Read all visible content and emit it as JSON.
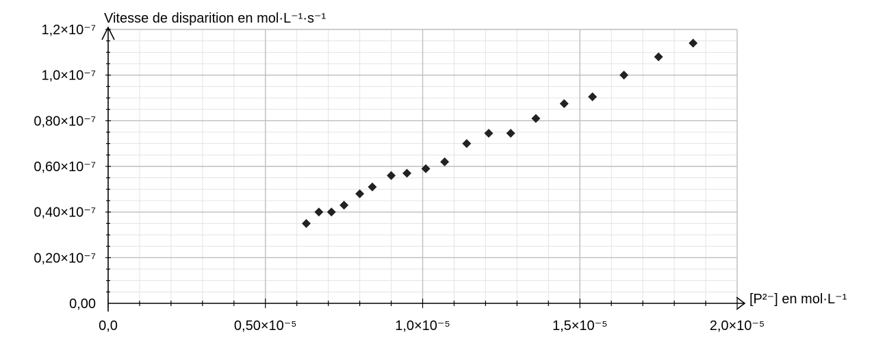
{
  "chart_data": {
    "type": "scatter",
    "title": "",
    "xlabel": "[P²⁻] en mol·L⁻¹",
    "ylabel": "Vitesse de disparition en mol·L⁻¹·s⁻¹",
    "xlim": [
      0,
      2e-05
    ],
    "ylim": [
      0,
      1.2e-07
    ],
    "grid": true,
    "legend": "none",
    "marker": "diamond",
    "marker_color": "#222222",
    "x_ticks": [
      {
        "value": 0,
        "label": "0,0"
      },
      {
        "value": 5e-06,
        "label": "0,50×10⁻⁵"
      },
      {
        "value": 1e-05,
        "label": "1,0×10⁻⁵"
      },
      {
        "value": 1.5e-05,
        "label": "1,5×10⁻⁵"
      },
      {
        "value": 2e-05,
        "label": "2,0×10⁻⁵"
      }
    ],
    "y_ticks": [
      {
        "value": 0,
        "label": "0,00"
      },
      {
        "value": 2e-08,
        "label": "0,20×10⁻⁷"
      },
      {
        "value": 4e-08,
        "label": "0,40×10⁻⁷"
      },
      {
        "value": 6e-08,
        "label": "0,60×10⁻⁷"
      },
      {
        "value": 8e-08,
        "label": "0,80×10⁻⁷"
      },
      {
        "value": 1e-07,
        "label": "1,0×10⁻⁷"
      },
      {
        "value": 1.2e-07,
        "label": "1,2×10⁻⁷"
      }
    ],
    "points": [
      {
        "x": 6.3e-06,
        "y": 3.5e-08
      },
      {
        "x": 6.7e-06,
        "y": 4e-08
      },
      {
        "x": 7.1e-06,
        "y": 4e-08
      },
      {
        "x": 7.5e-06,
        "y": 4.3e-08
      },
      {
        "x": 8e-06,
        "y": 4.8e-08
      },
      {
        "x": 8.4e-06,
        "y": 5.1e-08
      },
      {
        "x": 9e-06,
        "y": 5.6e-08
      },
      {
        "x": 9.5e-06,
        "y": 5.7e-08
      },
      {
        "x": 1.01e-05,
        "y": 5.9e-08
      },
      {
        "x": 1.07e-05,
        "y": 6.2e-08
      },
      {
        "x": 1.14e-05,
        "y": 7e-08
      },
      {
        "x": 1.21e-05,
        "y": 7.45e-08
      },
      {
        "x": 1.28e-05,
        "y": 7.45e-08
      },
      {
        "x": 1.36e-05,
        "y": 8.1e-08
      },
      {
        "x": 1.45e-05,
        "y": 8.75e-08
      },
      {
        "x": 1.54e-05,
        "y": 9.05e-08
      },
      {
        "x": 1.64e-05,
        "y": 1e-07
      },
      {
        "x": 1.75e-05,
        "y": 1.08e-07
      },
      {
        "x": 1.86e-05,
        "y": 1.14e-07
      }
    ]
  }
}
